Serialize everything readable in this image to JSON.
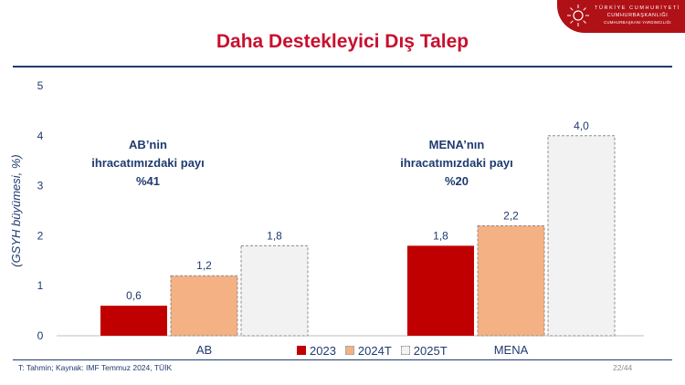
{
  "header": {
    "logo_lines": [
      "TÜRKİYE CUMHURİYETİ",
      "CUMHURBAŞKANLIĞI",
      "CUMHURBAŞKANI YARDIMCILIĞI"
    ]
  },
  "slide": {
    "title": "Daha Destekleyici Dış Talep",
    "source": "T: Tahmin; Kaynak: IMF Temmuz 2024, TÜİK",
    "page": "22/44"
  },
  "colors": {
    "accent": "#c8102e",
    "navy": "#1f3b6f",
    "s2023": "#c00000",
    "s2024T": "#f4b183",
    "s2025T": "#f2f2f2"
  },
  "chart_data": {
    "type": "bar",
    "categories": [
      "AB",
      "MENA"
    ],
    "series": [
      {
        "name": "2023",
        "values": [
          0.6,
          1.8
        ],
        "labels": [
          "0,6",
          "1,8"
        ]
      },
      {
        "name": "2024T",
        "values": [
          1.2,
          2.2
        ],
        "labels": [
          "1,2",
          "2,2"
        ]
      },
      {
        "name": "2025T",
        "values": [
          1.8,
          4.0
        ],
        "labels": [
          "1,8",
          "4,0"
        ]
      }
    ],
    "ylabel": "(GSYH büyümesi, %)",
    "ylim": [
      0,
      5
    ],
    "yticks": [
      "0",
      "1",
      "2",
      "3",
      "4",
      "5"
    ],
    "legend": "bottom-center",
    "grid": false,
    "annotations": [
      {
        "category": "AB",
        "lines": [
          "AB’nin",
          "ihracatımızdaki payı",
          "%41"
        ]
      },
      {
        "category": "MENA",
        "lines": [
          "MENA’nın",
          "ihracatımızdaki payı",
          "%20"
        ]
      }
    ]
  }
}
